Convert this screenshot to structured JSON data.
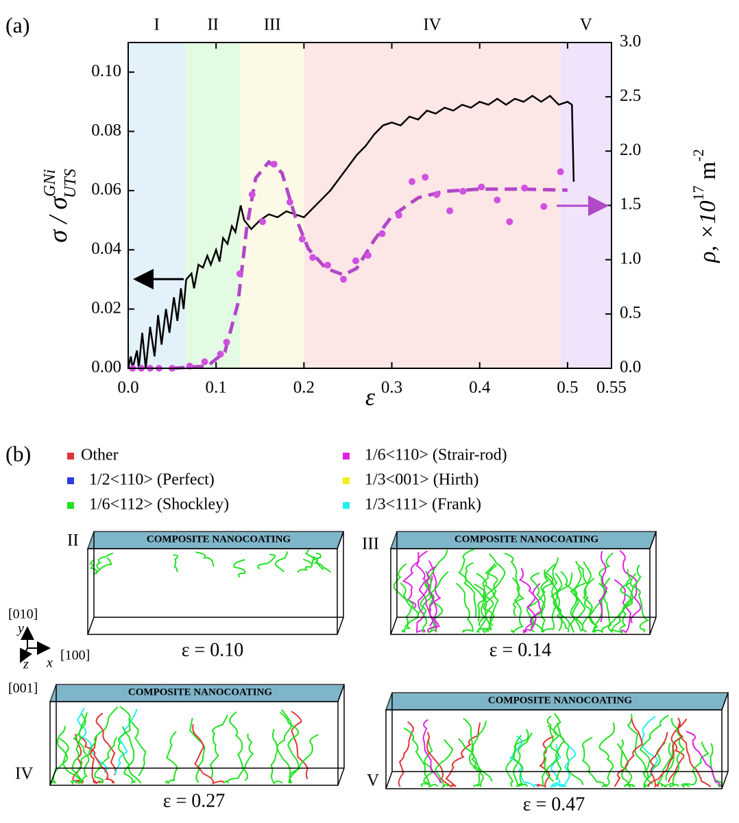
{
  "chart_data": {
    "type": "line",
    "panel_label": "(a)",
    "x_label": "ε",
    "y_label": {
      "main": "σ / σ",
      "sup": "GNi",
      "sub": "UTS"
    },
    "y2_label": {
      "main": "ρ, ×10",
      "sup": "17",
      "unit": " m",
      "unit_sup": "-2"
    },
    "xlim": [
      0,
      0.55
    ],
    "ylim": [
      0,
      0.11
    ],
    "y2lim": [
      0,
      3
    ],
    "xticks": [
      {
        "value": 0,
        "label": "0.0"
      },
      0.1,
      0.2,
      0.3,
      0.4,
      0.5,
      0.55
    ],
    "yticks": [
      {
        "value": 0,
        "label": "0.00"
      },
      {
        "value": 0.02,
        "label": "0.02"
      },
      {
        "value": 0.04,
        "label": "0.04"
      },
      {
        "value": 0.06,
        "label": "0.06"
      },
      {
        "value": 0.08,
        "label": "0.08"
      },
      {
        "value": 0.1,
        "label": "0.10"
      }
    ],
    "y2ticks": [
      {
        "value": 0,
        "label": "0.0"
      },
      0.5,
      {
        "value": 1,
        "label": "1.0"
      },
      1.5,
      {
        "value": 2,
        "label": "2.0"
      },
      2.5,
      {
        "value": 3,
        "label": "3.0"
      }
    ],
    "regions": [
      {
        "label": "I",
        "start": 0,
        "end": 0.065,
        "color": "#e3f1fb"
      },
      {
        "label": "II",
        "start": 0.065,
        "end": 0.128,
        "color": "#e3fbe3"
      },
      {
        "label": "III",
        "start": 0.128,
        "end": 0.2,
        "color": "#fcfae6"
      },
      {
        "label": "IV",
        "start": 0.2,
        "end": 0.492,
        "color": "#fde6e6"
      },
      {
        "label": "V",
        "start": 0.492,
        "end": 0.55,
        "color": "#f1e3fb"
      }
    ],
    "series": [
      {
        "style": "solid",
        "color": "#000000",
        "axis": "y",
        "x": [
          0,
          0.003,
          0.005,
          0.01,
          0.012,
          0.016,
          0.02,
          0.025,
          0.03,
          0.034,
          0.038,
          0.043,
          0.047,
          0.052,
          0.056,
          0.06,
          0.063,
          0.066,
          0.072,
          0.075,
          0.08,
          0.085,
          0.09,
          0.094,
          0.1,
          0.104,
          0.108,
          0.113,
          0.118,
          0.122,
          0.128,
          0.132,
          0.14,
          0.15,
          0.16,
          0.17,
          0.18,
          0.19,
          0.2,
          0.21,
          0.22,
          0.23,
          0.24,
          0.25,
          0.26,
          0.27,
          0.28,
          0.29,
          0.3,
          0.31,
          0.32,
          0.33,
          0.34,
          0.35,
          0.36,
          0.37,
          0.38,
          0.39,
          0.4,
          0.41,
          0.42,
          0.43,
          0.44,
          0.45,
          0.46,
          0.47,
          0.48,
          0.49,
          0.5,
          0.505,
          0.507
        ],
        "values": [
          0,
          0.004,
          0,
          0.006,
          0,
          0.012,
          0,
          0.014,
          0.004,
          0.018,
          0.008,
          0.02,
          0.012,
          0.024,
          0.016,
          0.027,
          0.02,
          0.03,
          0.032,
          0.027,
          0.035,
          0.034,
          0.038,
          0.035,
          0.04,
          0.036,
          0.044,
          0.042,
          0.048,
          0.046,
          0.055,
          0.05,
          0.047,
          0.05,
          0.052,
          0.051,
          0.053,
          0.052,
          0.051,
          0.054,
          0.057,
          0.06,
          0.064,
          0.068,
          0.072,
          0.075,
          0.079,
          0.082,
          0.083,
          0.082,
          0.085,
          0.084,
          0.087,
          0.086,
          0.088,
          0.087,
          0.089,
          0.088,
          0.09,
          0.089,
          0.091,
          0.089,
          0.091,
          0.09,
          0.092,
          0.09,
          0.092,
          0.089,
          0.09,
          0.089,
          0.063
        ]
      },
      {
        "style": "dashed",
        "color": "#b048c8",
        "axis": "y2",
        "x": [
          0.05,
          0.09,
          0.11,
          0.125,
          0.135,
          0.145,
          0.16,
          0.175,
          0.19,
          0.205,
          0.225,
          0.245,
          0.26,
          0.28,
          0.3,
          0.33,
          0.36,
          0.4,
          0.45,
          0.5
        ],
        "values": [
          0,
          0.02,
          0.15,
          0.6,
          1.3,
          1.75,
          1.9,
          1.8,
          1.4,
          1.1,
          0.92,
          0.86,
          0.92,
          1.18,
          1.4,
          1.57,
          1.63,
          1.65,
          1.65,
          1.64
        ]
      },
      {
        "style": "markers",
        "color": "#d050e0",
        "axis": "y2",
        "x": [
          0.005,
          0.015,
          0.025,
          0.035,
          0.05,
          0.07,
          0.087,
          0.105,
          0.112,
          0.127,
          0.141,
          0.153,
          0.166,
          0.184,
          0.198,
          0.21,
          0.227,
          0.245,
          0.259,
          0.273,
          0.289,
          0.308,
          0.323,
          0.338,
          0.351,
          0.366,
          0.381,
          0.402,
          0.42,
          0.434,
          0.451,
          0.473,
          0.492
        ],
        "values": [
          0,
          0,
          0,
          0,
          0,
          0.02,
          0.06,
          0.13,
          0.24,
          0.87,
          1.6,
          1.35,
          1.88,
          1.53,
          1.19,
          1.02,
          0.95,
          0.82,
          0.99,
          1.04,
          1.24,
          1.41,
          1.72,
          1.76,
          1.6,
          1.45,
          1.63,
          1.67,
          1.55,
          1.35,
          1.66,
          1.49,
          1.81
        ]
      }
    ]
  },
  "panel_b": {
    "label": "(b)",
    "legend": [
      {
        "label": "Other",
        "color": "#e03535"
      },
      {
        "label": "1/2<110> (Perfect)",
        "color": "#2a3ee0"
      },
      {
        "label": "1/6<112> (Shockley)",
        "color": "#22e022"
      },
      {
        "label": "1/6<110> (Strair-rod)",
        "color": "#e022e0"
      },
      {
        "label": "1/3<001> (Hirth)",
        "color": "#f0f020"
      },
      {
        "label": "1/3<111> (Frank)",
        "color": "#22f0f0"
      }
    ],
    "coating": "COMPOSITE NANOCOATING",
    "snapshots": [
      {
        "label": "II",
        "strain": "ε = 0.10"
      },
      {
        "label": "III",
        "strain": "ε = 0.14"
      },
      {
        "label": "IV",
        "strain": "ε = 0.27"
      },
      {
        "label": "V",
        "strain": "ε = 0.47"
      }
    ],
    "axes": {
      "y_dir": "[010]",
      "y": "y",
      "x_dir": "[100]",
      "x": "x",
      "z_dir": "[001]",
      "z": "z"
    }
  }
}
